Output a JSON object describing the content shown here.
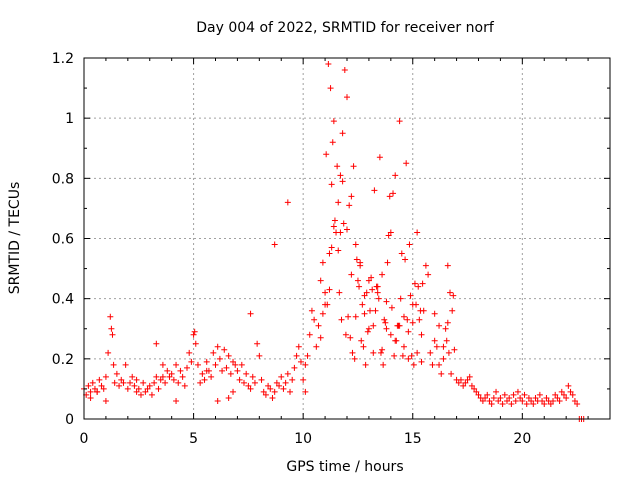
{
  "chart_data": {
    "type": "scatter",
    "title": "Day 004 of 2022, SRMTID for receiver norf",
    "xlabel": "GPS time / hours",
    "ylabel": "SRMTID / TECUs",
    "xlim": [
      0,
      24
    ],
    "ylim": [
      0,
      1.2
    ],
    "xticks": [
      0,
      5,
      10,
      15,
      20
    ],
    "xtick_labels": [
      "0",
      "5",
      "10",
      "15",
      "20"
    ],
    "yticks": [
      0,
      0.2,
      0.4,
      0.6,
      0.8,
      1.0,
      1.2
    ],
    "ytick_labels": [
      "0",
      "0.2",
      "0.4",
      "0.6",
      "0.8",
      "1",
      "1.2"
    ],
    "grid": true,
    "marker": "+",
    "color": "#ff0000",
    "series": [
      {
        "name": "SRMTID",
        "x": [
          0.0,
          0.1,
          0.2,
          0.3,
          0.4,
          0.5,
          0.6,
          0.7,
          0.8,
          0.9,
          1.0,
          1.1,
          1.2,
          1.25,
          1.3,
          1.35,
          1.4,
          1.5,
          1.6,
          1.7,
          1.8,
          1.9,
          2.0,
          2.1,
          2.2,
          2.3,
          2.4,
          2.5,
          2.6,
          2.7,
          2.8,
          2.9,
          3.0,
          3.1,
          3.2,
          3.3,
          3.4,
          3.5,
          3.6,
          3.7,
          3.8,
          3.9,
          4.0,
          4.1,
          4.2,
          4.3,
          4.4,
          4.5,
          4.6,
          4.7,
          4.8,
          4.9,
          5.0,
          5.05,
          5.1,
          5.2,
          5.3,
          5.4,
          5.5,
          5.6,
          5.7,
          5.8,
          5.9,
          6.0,
          6.1,
          6.2,
          6.3,
          6.4,
          6.5,
          6.6,
          6.7,
          6.8,
          6.9,
          7.0,
          7.1,
          7.2,
          7.3,
          7.4,
          7.5,
          7.6,
          7.7,
          7.8,
          7.9,
          8.0,
          8.1,
          8.2,
          8.3,
          8.4,
          8.5,
          8.6,
          8.7,
          8.8,
          8.9,
          9.0,
          9.1,
          9.2,
          9.3,
          9.4,
          9.5,
          9.6,
          9.7,
          9.8,
          9.9,
          10.0,
          10.1,
          10.2,
          10.3,
          10.4,
          10.5,
          10.6,
          10.7,
          10.8,
          10.9,
          11.0,
          11.1,
          11.2,
          11.3,
          11.4,
          11.5,
          11.6,
          11.7,
          11.8,
          11.9,
          12.0,
          12.1,
          12.2,
          12.3,
          12.4,
          12.5,
          12.6,
          12.7,
          12.8,
          12.9,
          13.0,
          13.1,
          13.2,
          13.3,
          13.4,
          13.5,
          13.6,
          13.7,
          13.8,
          13.9,
          14.0,
          14.1,
          14.2,
          14.3,
          14.4,
          14.5,
          14.6,
          14.7,
          14.8,
          14.9,
          15.0,
          15.1,
          15.2,
          15.3,
          15.4,
          15.5,
          15.6,
          15.7,
          15.8,
          15.9,
          16.0,
          16.1,
          16.2,
          16.3,
          16.4,
          16.5,
          16.6,
          16.7,
          16.8,
          16.9,
          17.0,
          17.1,
          17.2,
          17.3,
          17.4,
          17.5,
          17.6,
          17.7,
          17.8,
          17.9,
          18.0,
          18.1,
          18.2,
          18.3,
          18.4,
          18.5,
          18.6,
          18.7,
          18.8,
          18.9,
          19.0,
          19.1,
          19.2,
          19.3,
          19.4,
          19.5,
          19.6,
          19.7,
          19.8,
          19.9,
          20.0,
          20.1,
          20.2,
          20.3,
          20.4,
          20.5,
          20.6,
          20.7,
          20.8,
          20.9,
          21.0,
          21.1,
          21.2,
          21.3,
          21.4,
          21.5,
          21.6,
          21.7,
          21.8,
          21.9,
          22.0,
          22.1,
          22.2,
          22.3,
          22.4,
          22.5,
          22.6,
          22.7,
          22.8,
          4.2,
          6.6,
          10.1,
          0.3,
          0.6,
          1.0,
          2.4,
          3.3,
          3.6,
          5.6,
          6.1,
          6.8,
          7.6,
          8.7,
          9.3,
          11.05,
          11.15,
          11.25,
          11.35,
          11.45,
          11.55,
          11.65,
          11.75,
          11.85,
          11.95,
          12.05,
          12.15,
          12.25,
          12.35,
          12.45,
          12.55,
          12.65,
          12.75,
          12.85,
          12.95,
          13.05,
          13.15,
          13.25,
          13.35,
          13.45,
          13.55,
          13.65,
          13.75,
          13.85,
          13.95,
          14.05,
          14.15,
          14.25,
          14.35,
          14.45,
          14.55,
          14.65,
          14.75,
          14.85,
          14.95,
          15.05,
          15.15,
          15.25,
          15.35,
          15.45,
          16.55,
          16.65,
          16.75,
          16.85,
          10.8,
          10.9,
          11.0,
          11.2,
          11.3,
          11.4,
          11.6,
          11.7,
          11.8,
          12.0,
          12.2,
          12.4,
          12.6,
          12.8,
          13.0,
          13.2,
          13.4,
          13.6,
          13.8,
          14.0,
          14.2,
          14.4,
          14.6,
          14.8,
          15.0,
          15.2,
          15.4,
          16.0,
          16.2,
          16.4,
          16.6
        ],
        "y": [
          0.1,
          0.08,
          0.11,
          0.09,
          0.12,
          0.1,
          0.09,
          0.13,
          0.11,
          0.1,
          0.14,
          0.22,
          0.34,
          0.3,
          0.28,
          0.18,
          0.12,
          0.15,
          0.11,
          0.13,
          0.12,
          0.18,
          0.1,
          0.12,
          0.14,
          0.11,
          0.09,
          0.1,
          0.08,
          0.12,
          0.09,
          0.1,
          0.11,
          0.08,
          0.12,
          0.14,
          0.1,
          0.13,
          0.18,
          0.12,
          0.16,
          0.14,
          0.15,
          0.13,
          0.18,
          0.12,
          0.16,
          0.14,
          0.11,
          0.17,
          0.22,
          0.19,
          0.28,
          0.29,
          0.25,
          0.18,
          0.12,
          0.15,
          0.13,
          0.19,
          0.16,
          0.14,
          0.22,
          0.18,
          0.24,
          0.2,
          0.16,
          0.23,
          0.17,
          0.21,
          0.15,
          0.19,
          0.18,
          0.16,
          0.13,
          0.18,
          0.12,
          0.15,
          0.11,
          0.1,
          0.14,
          0.12,
          0.25,
          0.21,
          0.13,
          0.09,
          0.08,
          0.11,
          0.1,
          0.07,
          0.09,
          0.12,
          0.11,
          0.14,
          0.1,
          0.12,
          0.15,
          0.09,
          0.13,
          0.17,
          0.21,
          0.24,
          0.19,
          0.13,
          0.18,
          0.21,
          0.28,
          0.36,
          0.33,
          0.24,
          0.31,
          0.27,
          0.35,
          0.42,
          0.38,
          0.55,
          0.78,
          0.99,
          0.62,
          0.72,
          0.81,
          0.95,
          1.16,
          1.07,
          0.71,
          0.48,
          0.84,
          0.58,
          0.46,
          0.52,
          0.38,
          0.41,
          0.42,
          0.46,
          0.47,
          0.31,
          0.36,
          0.42,
          0.87,
          0.48,
          0.33,
          0.39,
          0.61,
          0.62,
          0.75,
          0.81,
          0.31,
          0.99,
          0.55,
          0.34,
          0.85,
          0.29,
          0.41,
          0.38,
          0.45,
          0.62,
          0.33,
          0.28,
          0.36,
          0.51,
          0.48,
          0.22,
          0.18,
          0.26,
          0.24,
          0.18,
          0.15,
          0.2,
          0.3,
          0.51,
          0.42,
          0.36,
          0.23,
          0.13,
          0.12,
          0.13,
          0.11,
          0.12,
          0.13,
          0.14,
          0.11,
          0.1,
          0.09,
          0.08,
          0.07,
          0.06,
          0.07,
          0.08,
          0.06,
          0.05,
          0.07,
          0.09,
          0.06,
          0.07,
          0.05,
          0.08,
          0.06,
          0.07,
          0.05,
          0.08,
          0.06,
          0.09,
          0.07,
          0.06,
          0.08,
          0.05,
          0.07,
          0.06,
          0.05,
          0.07,
          0.06,
          0.08,
          0.06,
          0.05,
          0.07,
          0.06,
          0.05,
          0.06,
          0.08,
          0.07,
          0.06,
          0.09,
          0.08,
          0.07,
          0.11,
          0.09,
          0.08,
          0.06,
          0.05,
          0.0,
          0.0,
          0.0,
          0.06,
          0.07,
          0.09,
          0.07,
          0.09,
          0.06,
          0.13,
          0.25,
          0.14,
          0.16,
          0.06,
          0.09,
          0.35,
          0.58,
          0.72,
          0.88,
          1.18,
          1.1,
          0.92,
          0.66,
          0.84,
          0.42,
          0.33,
          0.65,
          0.28,
          0.34,
          0.27,
          0.22,
          0.2,
          0.53,
          0.44,
          0.26,
          0.24,
          0.18,
          0.29,
          0.36,
          0.43,
          0.76,
          0.44,
          0.4,
          0.22,
          0.18,
          0.32,
          0.52,
          0.74,
          0.37,
          0.21,
          0.26,
          0.31,
          0.4,
          0.21,
          0.53,
          0.33,
          0.58,
          0.21,
          0.18,
          0.38,
          0.44,
          0.36,
          0.45,
          0.26,
          0.22,
          0.15,
          0.41,
          0.46,
          0.52,
          0.38,
          0.43,
          0.57,
          0.64,
          0.56,
          0.62,
          0.79,
          0.63,
          0.74,
          0.34,
          0.51,
          0.35,
          0.3,
          0.22,
          0.44,
          0.23,
          0.3,
          0.28,
          0.26,
          0.31,
          0.24,
          0.2,
          0.32,
          0.22,
          0.19,
          0.35,
          0.31,
          0.24,
          0.32
        ]
      }
    ]
  }
}
